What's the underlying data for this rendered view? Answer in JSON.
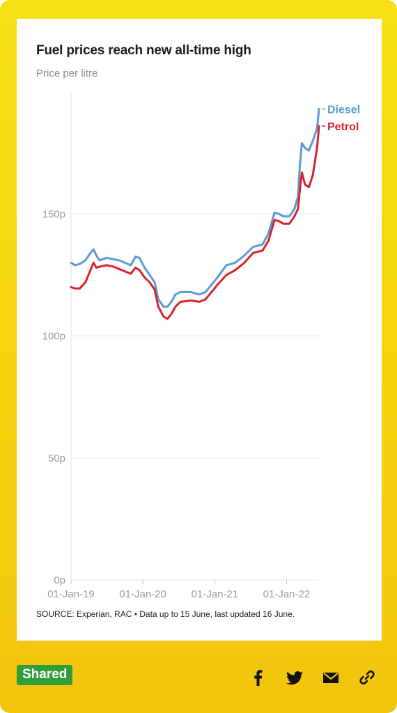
{
  "card": {
    "title": "Fuel prices reach new all-time high",
    "subtitle": "Price per litre",
    "source": "SOURCE: Experian, RAC • Data up to 15 June, last updated 16 June."
  },
  "footer": {
    "badge_label": "Shared",
    "share_icons": [
      "facebook-icon",
      "twitter-icon",
      "email-icon",
      "link-icon"
    ]
  },
  "chart_data": {
    "type": "line",
    "title": "Fuel prices reach new all-time high",
    "subtitle": "Price per litre",
    "xlabel": "",
    "ylabel": "",
    "ylim": [
      0,
      200
    ],
    "xlim": [
      "2019-01-01",
      "2022-06-15"
    ],
    "grid": true,
    "legend": "end-of-line labels",
    "yticks": [
      {
        "value": 0,
        "label": "0p"
      },
      {
        "value": 50,
        "label": "50p"
      },
      {
        "value": 100,
        "label": "100p"
      },
      {
        "value": 150,
        "label": "150p"
      }
    ],
    "xticks": [
      {
        "value": "2019-01-01",
        "label": "01-Jan-19"
      },
      {
        "value": "2020-01-01",
        "label": "01-Jan-20"
      },
      {
        "value": "2021-01-01",
        "label": "01-Jan-21"
      },
      {
        "value": "2022-01-01",
        "label": "01-Jan-22"
      }
    ],
    "series": [
      {
        "name": "Diesel",
        "color": "#5b9bd5",
        "points": [
          [
            "2019-01-01",
            130
          ],
          [
            "2019-01-20",
            129
          ],
          [
            "2019-02-15",
            129.5
          ],
          [
            "2019-03-15",
            131
          ],
          [
            "2019-04-10",
            134
          ],
          [
            "2019-04-25",
            135.5
          ],
          [
            "2019-05-10",
            133
          ],
          [
            "2019-05-25",
            131
          ],
          [
            "2019-07-01",
            132
          ],
          [
            "2019-08-01",
            131.5
          ],
          [
            "2019-09-01",
            131
          ],
          [
            "2019-10-01",
            130
          ],
          [
            "2019-11-01",
            129
          ],
          [
            "2019-11-25",
            132.5
          ],
          [
            "2019-12-15",
            132
          ],
          [
            "2020-01-10",
            128
          ],
          [
            "2020-02-05",
            125
          ],
          [
            "2020-03-01",
            122
          ],
          [
            "2020-03-20",
            115
          ],
          [
            "2020-04-15",
            112
          ],
          [
            "2020-05-05",
            112
          ],
          [
            "2020-05-25",
            114
          ],
          [
            "2020-06-15",
            117
          ],
          [
            "2020-07-10",
            118
          ],
          [
            "2020-09-01",
            118
          ],
          [
            "2020-10-15",
            117
          ],
          [
            "2020-11-15",
            118
          ],
          [
            "2020-12-15",
            121
          ],
          [
            "2021-01-15",
            124
          ],
          [
            "2021-03-01",
            129
          ],
          [
            "2021-04-15",
            130
          ],
          [
            "2021-06-01",
            133
          ],
          [
            "2021-07-15",
            136.5
          ],
          [
            "2021-09-01",
            137.5
          ],
          [
            "2021-10-01",
            142
          ],
          [
            "2021-11-01",
            150.5
          ],
          [
            "2021-11-25",
            150
          ],
          [
            "2021-12-15",
            149
          ],
          [
            "2022-01-15",
            149
          ],
          [
            "2022-02-10",
            152
          ],
          [
            "2022-02-28",
            157
          ],
          [
            "2022-03-10",
            170
          ],
          [
            "2022-03-20",
            179
          ],
          [
            "2022-04-05",
            177
          ],
          [
            "2022-04-25",
            176
          ],
          [
            "2022-05-15",
            180
          ],
          [
            "2022-06-05",
            185
          ],
          [
            "2022-06-15",
            193
          ]
        ]
      },
      {
        "name": "Petrol",
        "color": "#d8232a",
        "points": [
          [
            "2019-01-01",
            120
          ],
          [
            "2019-01-20",
            119.5
          ],
          [
            "2019-02-15",
            119.5
          ],
          [
            "2019-03-15",
            122
          ],
          [
            "2019-04-10",
            127
          ],
          [
            "2019-04-25",
            130
          ],
          [
            "2019-05-10",
            128
          ],
          [
            "2019-06-01",
            128.5
          ],
          [
            "2019-07-01",
            129
          ],
          [
            "2019-08-01",
            128.5
          ],
          [
            "2019-09-01",
            127.5
          ],
          [
            "2019-10-01",
            126.5
          ],
          [
            "2019-11-01",
            125.5
          ],
          [
            "2019-11-25",
            128
          ],
          [
            "2019-12-15",
            127
          ],
          [
            "2020-01-10",
            124
          ],
          [
            "2020-02-05",
            122
          ],
          [
            "2020-03-01",
            119
          ],
          [
            "2020-03-20",
            112
          ],
          [
            "2020-04-15",
            108
          ],
          [
            "2020-05-05",
            107
          ],
          [
            "2020-05-25",
            109
          ],
          [
            "2020-06-15",
            112
          ],
          [
            "2020-07-10",
            114
          ],
          [
            "2020-09-01",
            114.5
          ],
          [
            "2020-10-15",
            114
          ],
          [
            "2020-11-15",
            115
          ],
          [
            "2020-12-15",
            118
          ],
          [
            "2021-01-15",
            121
          ],
          [
            "2021-03-01",
            125
          ],
          [
            "2021-04-15",
            127
          ],
          [
            "2021-06-01",
            130
          ],
          [
            "2021-07-15",
            134
          ],
          [
            "2021-09-01",
            135
          ],
          [
            "2021-10-01",
            139
          ],
          [
            "2021-11-01",
            147.5
          ],
          [
            "2021-11-25",
            147
          ],
          [
            "2021-12-15",
            146
          ],
          [
            "2022-01-15",
            146
          ],
          [
            "2022-02-10",
            149
          ],
          [
            "2022-02-28",
            152
          ],
          [
            "2022-03-10",
            160
          ],
          [
            "2022-03-20",
            167
          ],
          [
            "2022-04-05",
            162
          ],
          [
            "2022-04-25",
            161
          ],
          [
            "2022-05-15",
            166
          ],
          [
            "2022-06-05",
            177
          ],
          [
            "2022-06-15",
            186
          ]
        ]
      }
    ]
  }
}
